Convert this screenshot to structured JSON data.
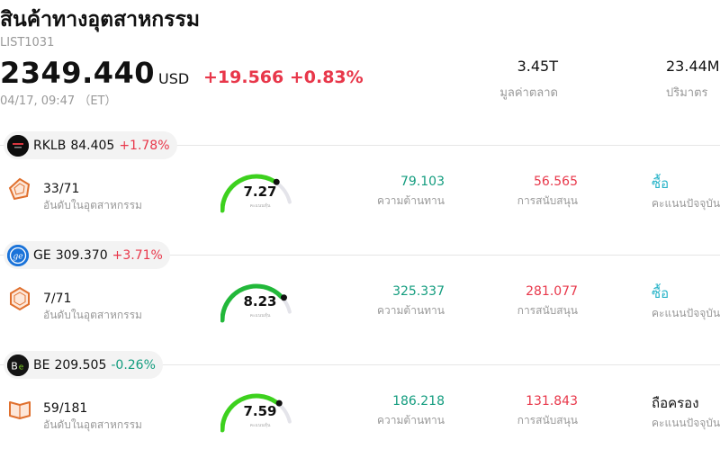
{
  "header": {
    "title": "สินค้าทางอุตสาหกรรม",
    "code": "LIST1031",
    "price": "2349.440",
    "currency": "USD",
    "change": "+19.566 +0.83%",
    "timestamp": "04/17, 09:47 （ET）",
    "change_color": "#e8374a"
  },
  "stats": {
    "market_cap": {
      "value": "3.45T",
      "label": "มูลค่าตลาด"
    },
    "volume": {
      "value": "23.44M",
      "label": "ปริมาตร"
    }
  },
  "colors": {
    "up": "#e8374a",
    "down": "#129c7e",
    "buy": "#27b3c8",
    "gauge_green": "#3dd11e",
    "gauge_track": "#e4e4ea"
  },
  "stocks": [
    {
      "logo_icon": "rklb-logo-icon",
      "ticker": "RKLB",
      "price": "84.405",
      "change": "+1.78%",
      "direction": "up",
      "rank": "33/71",
      "rank_label": "อันดับในอุตสาหกรรม",
      "score": "7.27",
      "score_value": 7.27,
      "score_caption": "คะแนนหุ้น",
      "resistance": "79.103",
      "resistance_label": "ความต้านทาน",
      "support": "56.565",
      "support_label": "การสนับสนุน",
      "rating": "ซื้อ",
      "rating_type": "buy",
      "rating_label": "คะแนนปัจจุบัน"
    },
    {
      "logo_icon": "ge-logo-icon",
      "ticker": "GE",
      "price": "309.370",
      "change": "+3.71%",
      "direction": "up",
      "rank": "7/71",
      "rank_label": "อันดับในอุตสาหกรรม",
      "score": "8.23",
      "score_value": 8.23,
      "score_caption": "คะแนนหุ้น",
      "resistance": "325.337",
      "resistance_label": "ความต้านทาน",
      "support": "281.077",
      "support_label": "การสนับสนุน",
      "rating": "ซื้อ",
      "rating_type": "buy",
      "rating_label": "คะแนนปัจจุบัน"
    },
    {
      "logo_icon": "be-logo-icon",
      "ticker": "BE",
      "price": "209.505",
      "change": "-0.26%",
      "direction": "down",
      "rank": "59/181",
      "rank_label": "อันดับในอุตสาหกรรม",
      "score": "7.59",
      "score_value": 7.59,
      "score_caption": "คะแนนหุ้น",
      "resistance": "186.218",
      "resistance_label": "ความต้านทาน",
      "support": "131.843",
      "support_label": "การสนับสนุน",
      "rating": "ถือครอง",
      "rating_type": "hold",
      "rating_label": "คะแนนปัจจุบัน"
    }
  ]
}
